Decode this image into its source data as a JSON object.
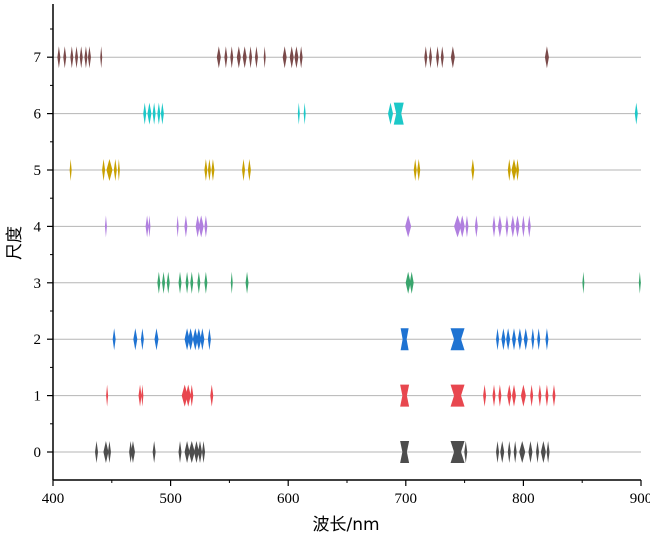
{
  "chart_data": {
    "type": "scatter",
    "xlabel": "波长/nm",
    "ylabel": "尺度",
    "xlim": [
      400,
      900
    ],
    "ylim": [
      -0.5,
      8
    ],
    "xticks": [
      400,
      500,
      600,
      700,
      800,
      900
    ],
    "yticks": [
      0,
      1,
      2,
      3,
      4,
      5,
      6,
      7
    ],
    "grid": "horizontal at y ticks",
    "series": [
      {
        "scale": 0,
        "color": "#4d4d4d",
        "points": [
          {
            "x": 437,
            "w": 3
          },
          {
            "x": 445,
            "w": 5
          },
          {
            "x": 448,
            "w": 3
          },
          {
            "x": 466,
            "w": 3
          },
          {
            "x": 468,
            "w": 4
          },
          {
            "x": 486,
            "w": 3
          },
          {
            "x": 508,
            "w": 3
          },
          {
            "x": 514,
            "w": 5
          },
          {
            "x": 518,
            "w": 6
          },
          {
            "x": 522,
            "w": 5
          },
          {
            "x": 525,
            "w": 4
          },
          {
            "x": 528,
            "w": 3
          },
          {
            "x": 699,
            "w": 9
          },
          {
            "x": 744,
            "w": 14
          },
          {
            "x": 751,
            "w": 3
          },
          {
            "x": 778,
            "w": 3
          },
          {
            "x": 782,
            "w": 4
          },
          {
            "x": 788,
            "w": 3
          },
          {
            "x": 793,
            "w": 3
          },
          {
            "x": 799,
            "w": 6
          },
          {
            "x": 806,
            "w": 4
          },
          {
            "x": 812,
            "w": 3
          },
          {
            "x": 817,
            "w": 5
          },
          {
            "x": 821,
            "w": 3
          }
        ]
      },
      {
        "scale": 1,
        "color": "#e8474f",
        "points": [
          {
            "x": 446,
            "w": 2
          },
          {
            "x": 474,
            "w": 3
          },
          {
            "x": 476,
            "w": 2
          },
          {
            "x": 512,
            "w": 6
          },
          {
            "x": 515,
            "w": 5
          },
          {
            "x": 518,
            "w": 3
          },
          {
            "x": 535,
            "w": 3
          },
          {
            "x": 699,
            "w": 9
          },
          {
            "x": 744,
            "w": 14
          },
          {
            "x": 767,
            "w": 3
          },
          {
            "x": 775,
            "w": 3
          },
          {
            "x": 780,
            "w": 3
          },
          {
            "x": 788,
            "w": 4
          },
          {
            "x": 792,
            "w": 4
          },
          {
            "x": 800,
            "w": 5
          },
          {
            "x": 807,
            "w": 3
          },
          {
            "x": 814,
            "w": 3
          },
          {
            "x": 820,
            "w": 3
          },
          {
            "x": 826,
            "w": 3
          }
        ]
      },
      {
        "scale": 2,
        "color": "#1f73d2",
        "points": [
          {
            "x": 452,
            "w": 3
          },
          {
            "x": 470,
            "w": 4
          },
          {
            "x": 476,
            "w": 3
          },
          {
            "x": 488,
            "w": 4
          },
          {
            "x": 514,
            "w": 5
          },
          {
            "x": 517,
            "w": 5
          },
          {
            "x": 521,
            "w": 5
          },
          {
            "x": 524,
            "w": 5
          },
          {
            "x": 527,
            "w": 4
          },
          {
            "x": 533,
            "w": 3
          },
          {
            "x": 699,
            "w": 8
          },
          {
            "x": 744,
            "w": 14
          },
          {
            "x": 778,
            "w": 3
          },
          {
            "x": 783,
            "w": 4
          },
          {
            "x": 787,
            "w": 4
          },
          {
            "x": 792,
            "w": 4
          },
          {
            "x": 797,
            "w": 4
          },
          {
            "x": 802,
            "w": 4
          },
          {
            "x": 808,
            "w": 3
          },
          {
            "x": 813,
            "w": 3
          },
          {
            "x": 820,
            "w": 3
          }
        ]
      },
      {
        "scale": 3,
        "color": "#3aa56d",
        "points": [
          {
            "x": 490,
            "w": 3
          },
          {
            "x": 494,
            "w": 3
          },
          {
            "x": 498,
            "w": 3
          },
          {
            "x": 508,
            "w": 3
          },
          {
            "x": 514,
            "w": 3
          },
          {
            "x": 518,
            "w": 3
          },
          {
            "x": 524,
            "w": 3
          },
          {
            "x": 530,
            "w": 3
          },
          {
            "x": 552,
            "w": 2
          },
          {
            "x": 565,
            "w": 3
          },
          {
            "x": 702,
            "w": 5
          },
          {
            "x": 705,
            "w": 4
          },
          {
            "x": 851,
            "w": 2
          },
          {
            "x": 899,
            "w": 2
          }
        ]
      },
      {
        "scale": 4,
        "color": "#b07fdf",
        "points": [
          {
            "x": 445,
            "w": 2
          },
          {
            "x": 480,
            "w": 3
          },
          {
            "x": 482,
            "w": 2
          },
          {
            "x": 506,
            "w": 2
          },
          {
            "x": 513,
            "w": 3
          },
          {
            "x": 523,
            "w": 4
          },
          {
            "x": 526,
            "w": 5
          },
          {
            "x": 530,
            "w": 3
          },
          {
            "x": 702,
            "w": 6
          },
          {
            "x": 744,
            "w": 7
          },
          {
            "x": 748,
            "w": 5
          },
          {
            "x": 752,
            "w": 3
          },
          {
            "x": 760,
            "w": 3
          },
          {
            "x": 775,
            "w": 3
          },
          {
            "x": 780,
            "w": 4
          },
          {
            "x": 786,
            "w": 3
          },
          {
            "x": 791,
            "w": 4
          },
          {
            "x": 795,
            "w": 4
          },
          {
            "x": 800,
            "w": 3
          },
          {
            "x": 805,
            "w": 3
          }
        ]
      },
      {
        "scale": 5,
        "color": "#c8a000",
        "points": [
          {
            "x": 415,
            "w": 2
          },
          {
            "x": 443,
            "w": 3
          },
          {
            "x": 448,
            "w": 6
          },
          {
            "x": 453,
            "w": 3
          },
          {
            "x": 456,
            "w": 2
          },
          {
            "x": 530,
            "w": 3
          },
          {
            "x": 533,
            "w": 3
          },
          {
            "x": 536,
            "w": 3
          },
          {
            "x": 562,
            "w": 3
          },
          {
            "x": 567,
            "w": 3
          },
          {
            "x": 708,
            "w": 3
          },
          {
            "x": 711,
            "w": 3
          },
          {
            "x": 757,
            "w": 3
          },
          {
            "x": 788,
            "w": 3
          },
          {
            "x": 792,
            "w": 5
          },
          {
            "x": 795,
            "w": 3
          }
        ]
      },
      {
        "scale": 6,
        "color": "#1cc8c8",
        "points": [
          {
            "x": 478,
            "w": 3
          },
          {
            "x": 482,
            "w": 4
          },
          {
            "x": 486,
            "w": 3
          },
          {
            "x": 490,
            "w": 3
          },
          {
            "x": 493,
            "w": 3
          },
          {
            "x": 609,
            "w": 2
          },
          {
            "x": 614,
            "w": 2
          },
          {
            "x": 687,
            "w": 5
          },
          {
            "x": 694,
            "w": 10
          },
          {
            "x": 896,
            "w": 3
          }
        ]
      },
      {
        "scale": 7,
        "color": "#7a4a4a",
        "points": [
          {
            "x": 405,
            "w": 3
          },
          {
            "x": 410,
            "w": 3
          },
          {
            "x": 416,
            "w": 3
          },
          {
            "x": 420,
            "w": 3
          },
          {
            "x": 424,
            "w": 3
          },
          {
            "x": 428,
            "w": 3
          },
          {
            "x": 431,
            "w": 3
          },
          {
            "x": 441,
            "w": 2
          },
          {
            "x": 541,
            "w": 4
          },
          {
            "x": 547,
            "w": 3
          },
          {
            "x": 552,
            "w": 3
          },
          {
            "x": 558,
            "w": 4
          },
          {
            "x": 563,
            "w": 4
          },
          {
            "x": 568,
            "w": 3
          },
          {
            "x": 573,
            "w": 3
          },
          {
            "x": 580,
            "w": 2
          },
          {
            "x": 597,
            "w": 4
          },
          {
            "x": 603,
            "w": 4
          },
          {
            "x": 607,
            "w": 4
          },
          {
            "x": 611,
            "w": 3
          },
          {
            "x": 717,
            "w": 3
          },
          {
            "x": 721,
            "w": 3
          },
          {
            "x": 727,
            "w": 3
          },
          {
            "x": 731,
            "w": 3
          },
          {
            "x": 740,
            "w": 4
          },
          {
            "x": 820,
            "w": 4
          }
        ]
      }
    ]
  }
}
